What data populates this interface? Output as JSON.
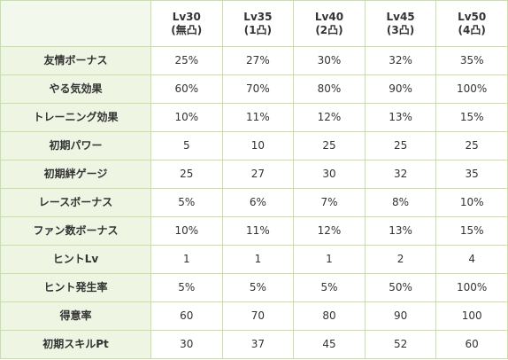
{
  "columns": [
    {
      "level": "Lv30",
      "limit": "(無凸)"
    },
    {
      "level": "Lv35",
      "limit": "(1凸)"
    },
    {
      "level": "Lv40",
      "limit": "(2凸)"
    },
    {
      "level": "Lv45",
      "limit": "(3凸)"
    },
    {
      "level": "Lv50",
      "limit": "(4凸)"
    }
  ],
  "rows": [
    {
      "label": "友情ボーナス",
      "values": [
        "25%",
        "27%",
        "30%",
        "32%",
        "35%"
      ]
    },
    {
      "label": "やる気効果",
      "values": [
        "60%",
        "70%",
        "80%",
        "90%",
        "100%"
      ]
    },
    {
      "label": "トレーニング効果",
      "values": [
        "10%",
        "11%",
        "12%",
        "13%",
        "15%"
      ]
    },
    {
      "label": "初期パワー",
      "values": [
        "5",
        "10",
        "25",
        "25",
        "25"
      ]
    },
    {
      "label": "初期絆ゲージ",
      "values": [
        "25",
        "27",
        "30",
        "32",
        "35"
      ]
    },
    {
      "label": "レースボーナス",
      "values": [
        "5%",
        "6%",
        "7%",
        "8%",
        "10%"
      ]
    },
    {
      "label": "ファン数ボーナス",
      "values": [
        "10%",
        "11%",
        "12%",
        "13%",
        "15%"
      ]
    },
    {
      "label": "ヒントLv",
      "values": [
        "1",
        "1",
        "1",
        "2",
        "4"
      ]
    },
    {
      "label": "ヒント発生率",
      "values": [
        "5%",
        "5%",
        "5%",
        "50%",
        "100%"
      ]
    },
    {
      "label": "得意率",
      "values": [
        "60",
        "70",
        "80",
        "90",
        "100"
      ]
    },
    {
      "label": "初期スキルPt",
      "values": [
        "30",
        "37",
        "45",
        "52",
        "60"
      ]
    }
  ]
}
